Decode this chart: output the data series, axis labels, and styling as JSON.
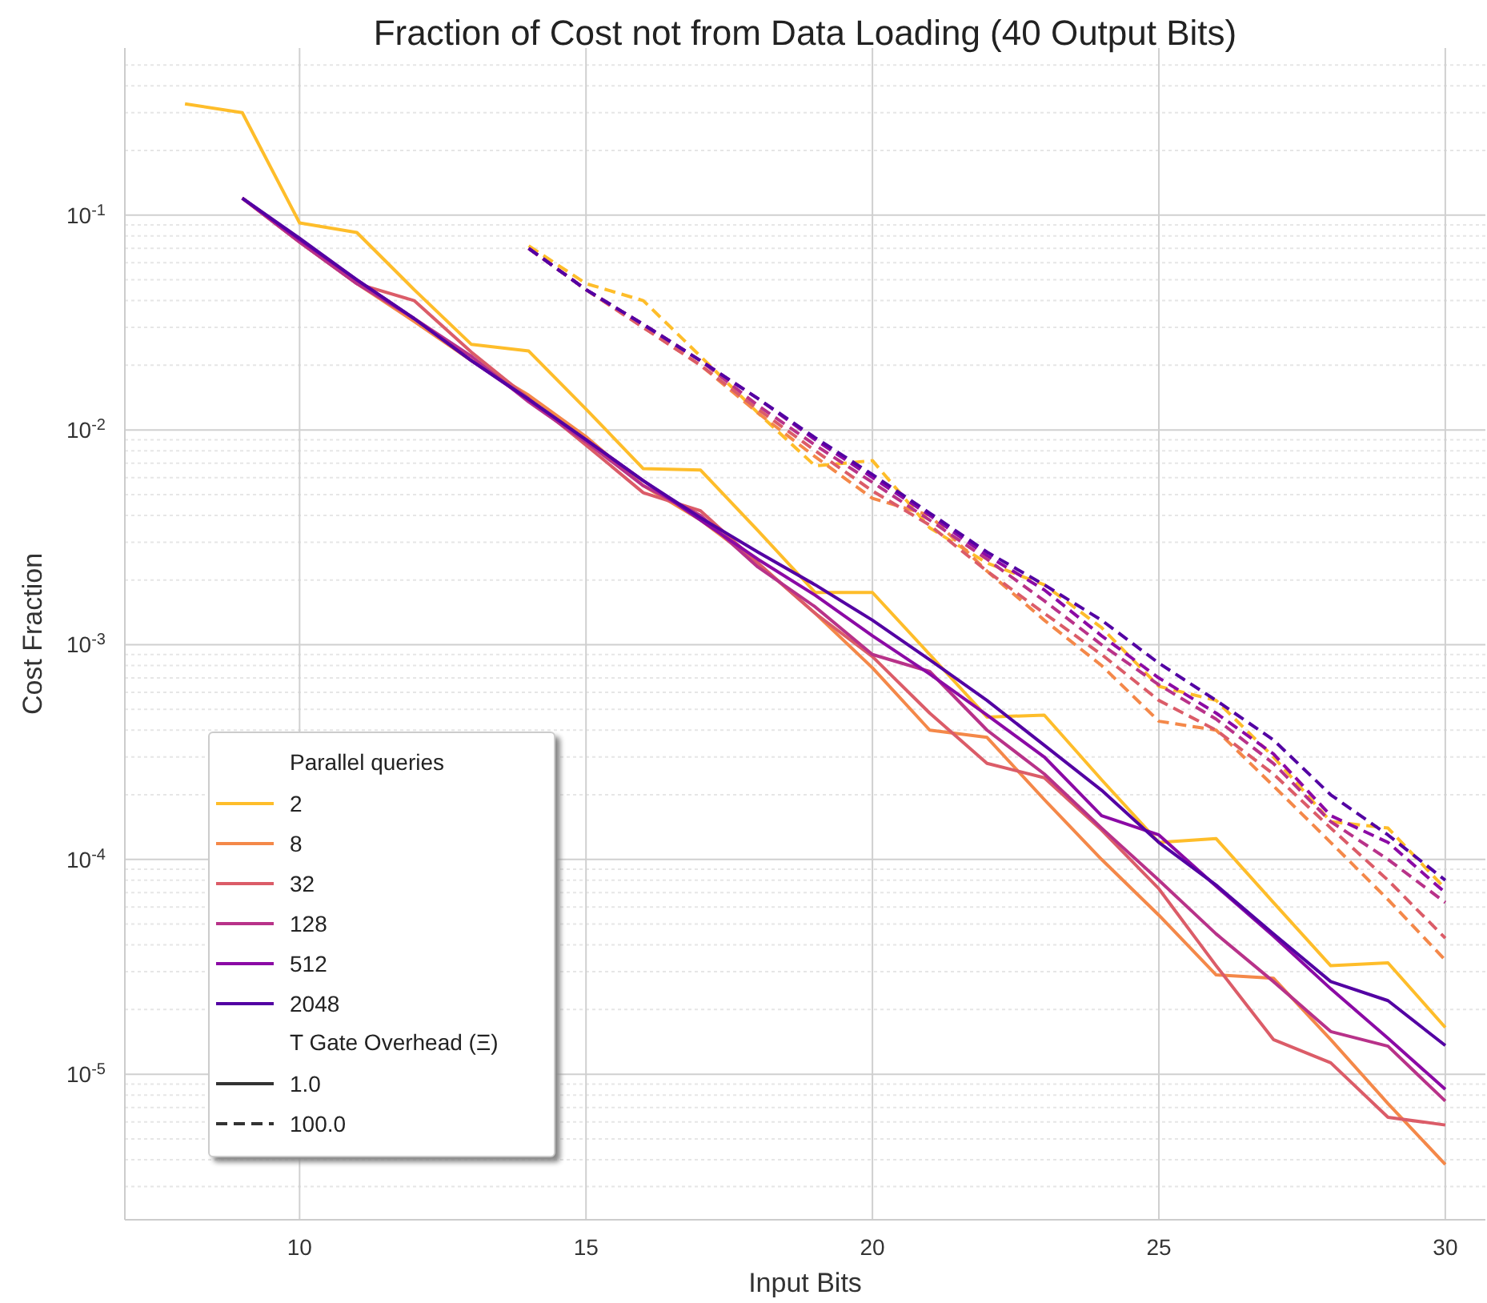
{
  "chart_data": {
    "type": "line",
    "title": "Fraction of Cost not from Data Loading (40 Output Bits)",
    "xlabel": "Input Bits",
    "ylabel": "Cost Fraction",
    "legend_title": "Parallel queries",
    "annotations": [
      "T Gate Overhead (Ξ)",
      "1.0",
      "100.0"
    ],
    "log": "y",
    "grid": true,
    "legend": "bottom left",
    "xlim": [
      6.95,
      30.7
    ],
    "xticks": [
      10,
      15,
      20,
      25,
      30
    ],
    "ylim": [
      2.1e-06,
      0.6
    ],
    "yticks": [
      {
        "value": 3e-06,
        "label": null
      },
      {
        "value": 4e-06,
        "label": null
      },
      {
        "value": 5e-06,
        "label": null
      },
      {
        "value": 6e-06,
        "label": null
      },
      {
        "value": 7e-06,
        "label": null
      },
      {
        "value": 8e-06,
        "label": null
      },
      {
        "value": 9e-06,
        "label": null
      },
      {
        "value": 1e-05,
        "label": "10$^{-5}$"
      },
      {
        "value": 2e-05,
        "label": null
      },
      {
        "value": 3e-05,
        "label": null
      },
      {
        "value": 4e-05,
        "label": null
      },
      {
        "value": 5e-05,
        "label": null
      },
      {
        "value": 6e-05,
        "label": null
      },
      {
        "value": 7e-05,
        "label": null
      },
      {
        "value": 8e-05,
        "label": null
      },
      {
        "value": 9e-05,
        "label": null
      },
      {
        "value": 0.0001,
        "label": "10$^{-4}$"
      },
      {
        "value": 0.0002,
        "label": null
      },
      {
        "value": 0.0003,
        "label": null
      },
      {
        "value": 0.0004,
        "label": null
      },
      {
        "value": 0.0005,
        "label": null
      },
      {
        "value": 0.0006,
        "label": null
      },
      {
        "value": 0.0007,
        "label": null
      },
      {
        "value": 0.0008,
        "label": null
      },
      {
        "value": 0.0009,
        "label": null
      },
      {
        "value": 0.001,
        "label": "10$^{-3}$"
      },
      {
        "value": 0.002,
        "label": null
      },
      {
        "value": 0.003,
        "label": null
      },
      {
        "value": 0.004,
        "label": null
      },
      {
        "value": 0.005,
        "label": null
      },
      {
        "value": 0.006,
        "label": null
      },
      {
        "value": 0.007,
        "label": null
      },
      {
        "value": 0.008,
        "label": null
      },
      {
        "value": 0.009,
        "label": null
      },
      {
        "value": 0.01,
        "label": "10$^{-2}$"
      },
      {
        "value": 0.02,
        "label": null
      },
      {
        "value": 0.03,
        "label": null
      },
      {
        "value": 0.04,
        "label": null
      },
      {
        "value": 0.05,
        "label": null
      },
      {
        "value": 0.06,
        "label": null
      },
      {
        "value": 0.07,
        "label": null
      },
      {
        "value": 0.08,
        "label": null
      },
      {
        "value": 0.09,
        "label": null
      },
      {
        "value": 0.1,
        "label": "10$^{-1}$"
      },
      {
        "value": 0.2,
        "label": null
      },
      {
        "value": 0.3,
        "label": null
      },
      {
        "value": 0.4,
        "label": null
      },
      {
        "value": 0.5,
        "label": null
      }
    ],
    "series": [
      {
        "name": "2",
        "color": "#febd2a",
        "line_style": "solid",
        "x": [
          8,
          9,
          10,
          11,
          12,
          13,
          14,
          15,
          16,
          17,
          18,
          19,
          20,
          21,
          22,
          23,
          24,
          25,
          26,
          27,
          28,
          29,
          30
        ],
        "values": [
          0.33,
          0.3,
          0.092,
          0.083,
          0.045,
          0.025,
          0.0233,
          0.0125,
          0.0066,
          0.0065,
          0.0034,
          0.00175,
          0.00175,
          0.0009,
          0.00046,
          0.00047,
          0.000235,
          0.00012,
          0.000125,
          6.3e-05,
          3.2e-05,
          3.3e-05,
          1.65e-05
        ]
      },
      {
        "name": "8",
        "color": "#f48849",
        "line_style": "solid",
        "x": [
          9,
          10,
          11,
          12,
          13,
          14,
          15,
          16,
          17,
          18,
          19,
          20,
          21,
          22,
          23,
          24,
          25,
          26,
          27,
          28,
          29,
          30
        ],
        "values": [
          0.12,
          0.075,
          0.048,
          0.032,
          0.021,
          0.0145,
          0.0093,
          0.0055,
          0.0038,
          0.0024,
          0.0014,
          0.00078,
          0.0004,
          0.00037,
          0.00019,
          0.0001,
          5.5e-05,
          2.9e-05,
          2.8e-05,
          1.45e-05,
          7.3e-06,
          3.8e-06
        ]
      },
      {
        "name": "32",
        "color": "#db5c68",
        "line_style": "solid",
        "x": [
          9,
          10,
          11,
          12,
          13,
          14,
          15,
          16,
          17,
          18,
          19,
          20,
          21,
          22,
          23,
          24,
          25,
          26,
          27,
          28,
          29,
          30
        ],
        "values": [
          0.12,
          0.075,
          0.048,
          0.04,
          0.023,
          0.014,
          0.0085,
          0.0051,
          0.0042,
          0.0024,
          0.0014,
          0.00088,
          0.00048,
          0.00028,
          0.00024,
          0.000137,
          7.3e-05,
          3.2e-05,
          1.45e-05,
          1.13e-05,
          6.3e-06,
          5.8e-06
        ]
      },
      {
        "name": "128",
        "color": "#b83289",
        "line_style": "solid",
        "x": [
          9,
          10,
          11,
          12,
          13,
          14,
          15,
          16,
          17,
          18,
          19,
          20,
          21,
          22,
          23,
          24,
          25,
          26,
          27,
          28,
          29,
          30
        ],
        "values": [
          0.12,
          0.075,
          0.048,
          0.033,
          0.022,
          0.0135,
          0.0088,
          0.0055,
          0.004,
          0.0023,
          0.0015,
          0.0009,
          0.00075,
          0.0004,
          0.00025,
          0.00014,
          8e-05,
          4.5e-05,
          2.7e-05,
          1.58e-05,
          1.35e-05,
          7.5e-06
        ]
      },
      {
        "name": "512",
        "color": "#8b0aa5",
        "line_style": "solid",
        "x": [
          9,
          10,
          11,
          12,
          13,
          14,
          15,
          16,
          17,
          18,
          19,
          20,
          21,
          22,
          23,
          24,
          25,
          26,
          27,
          28,
          29,
          30
        ],
        "values": [
          0.12,
          0.077,
          0.05,
          0.033,
          0.021,
          0.0138,
          0.009,
          0.0058,
          0.0038,
          0.0025,
          0.0017,
          0.0011,
          0.00073,
          0.00047,
          0.0003,
          0.00016,
          0.00013,
          7.5e-05,
          4.4e-05,
          2.5e-05,
          1.47e-05,
          8.5e-06
        ]
      },
      {
        "name": "2048",
        "color": "#5302a3",
        "line_style": "solid",
        "x": [
          9,
          10,
          11,
          12,
          13,
          14,
          15,
          16,
          17,
          18,
          19,
          20,
          21,
          22,
          23,
          24,
          25,
          26,
          27,
          28,
          29,
          30
        ],
        "values": [
          0.12,
          0.078,
          0.05,
          0.033,
          0.021,
          0.0139,
          0.009,
          0.0058,
          0.0039,
          0.0027,
          0.0019,
          0.0013,
          0.00085,
          0.00055,
          0.00034,
          0.00021,
          0.00012,
          7.6e-05,
          4.5e-05,
          2.7e-05,
          2.2e-05,
          1.36e-05
        ]
      },
      {
        "color": "#febd2a",
        "line_style": "dashed",
        "x": [
          14,
          15,
          16,
          17,
          18,
          19,
          20,
          21,
          22,
          23,
          24,
          25,
          26,
          27,
          28,
          29,
          30
        ],
        "values": [
          0.072,
          0.048,
          0.04,
          0.022,
          0.012,
          0.0068,
          0.0072,
          0.0035,
          0.0024,
          0.0019,
          0.0012,
          0.00064,
          0.00055,
          0.0003,
          0.00015,
          0.00014,
          7.3e-05
        ]
      },
      {
        "color": "#f48849",
        "line_style": "dashed",
        "x": [
          14,
          15,
          16,
          17,
          18,
          19,
          20,
          21,
          22,
          23,
          24,
          25,
          26,
          27,
          28,
          29,
          30
        ],
        "values": [
          0.07,
          0.045,
          0.03,
          0.02,
          0.012,
          0.0075,
          0.0048,
          0.004,
          0.0022,
          0.0013,
          0.0008,
          0.00044,
          0.0004,
          0.00022,
          0.00012,
          6.5e-05,
          3.4e-05
        ]
      },
      {
        "color": "#db5c68",
        "line_style": "dashed",
        "x": [
          14,
          15,
          16,
          17,
          18,
          19,
          20,
          21,
          22,
          23,
          24,
          25,
          26,
          27,
          28,
          29,
          30
        ],
        "values": [
          0.07,
          0.045,
          0.03,
          0.02,
          0.0125,
          0.008,
          0.0052,
          0.0036,
          0.0022,
          0.0014,
          0.0009,
          0.00055,
          0.0004,
          0.00025,
          0.00014,
          8e-05,
          4.3e-05
        ]
      },
      {
        "color": "#b83289",
        "line_style": "dashed",
        "x": [
          14,
          15,
          16,
          17,
          18,
          19,
          20,
          21,
          22,
          23,
          24,
          25,
          26,
          27,
          28,
          29,
          30
        ],
        "values": [
          0.07,
          0.045,
          0.031,
          0.021,
          0.013,
          0.0085,
          0.0057,
          0.0038,
          0.0025,
          0.0016,
          0.001,
          0.00065,
          0.00045,
          0.00028,
          0.00015,
          0.0001,
          6.3e-05
        ]
      },
      {
        "color": "#8b0aa5",
        "line_style": "dashed",
        "x": [
          14,
          15,
          16,
          17,
          18,
          19,
          20,
          21,
          22,
          23,
          24,
          25,
          26,
          27,
          28,
          29,
          30
        ],
        "values": [
          0.07,
          0.045,
          0.031,
          0.021,
          0.014,
          0.009,
          0.006,
          0.004,
          0.0026,
          0.0018,
          0.0011,
          0.0007,
          0.00048,
          0.00031,
          0.00016,
          0.00012,
          7e-05
        ]
      },
      {
        "color": "#5302a3",
        "line_style": "dashed",
        "x": [
          14,
          15,
          16,
          17,
          18,
          19,
          20,
          21,
          22,
          23,
          24,
          25,
          26,
          27,
          28,
          29,
          30
        ],
        "values": [
          0.07,
          0.045,
          0.031,
          0.021,
          0.014,
          0.0092,
          0.0062,
          0.0041,
          0.0027,
          0.0019,
          0.0013,
          0.00082,
          0.00055,
          0.00036,
          0.0002,
          0.00013,
          8e-05
        ]
      }
    ]
  }
}
